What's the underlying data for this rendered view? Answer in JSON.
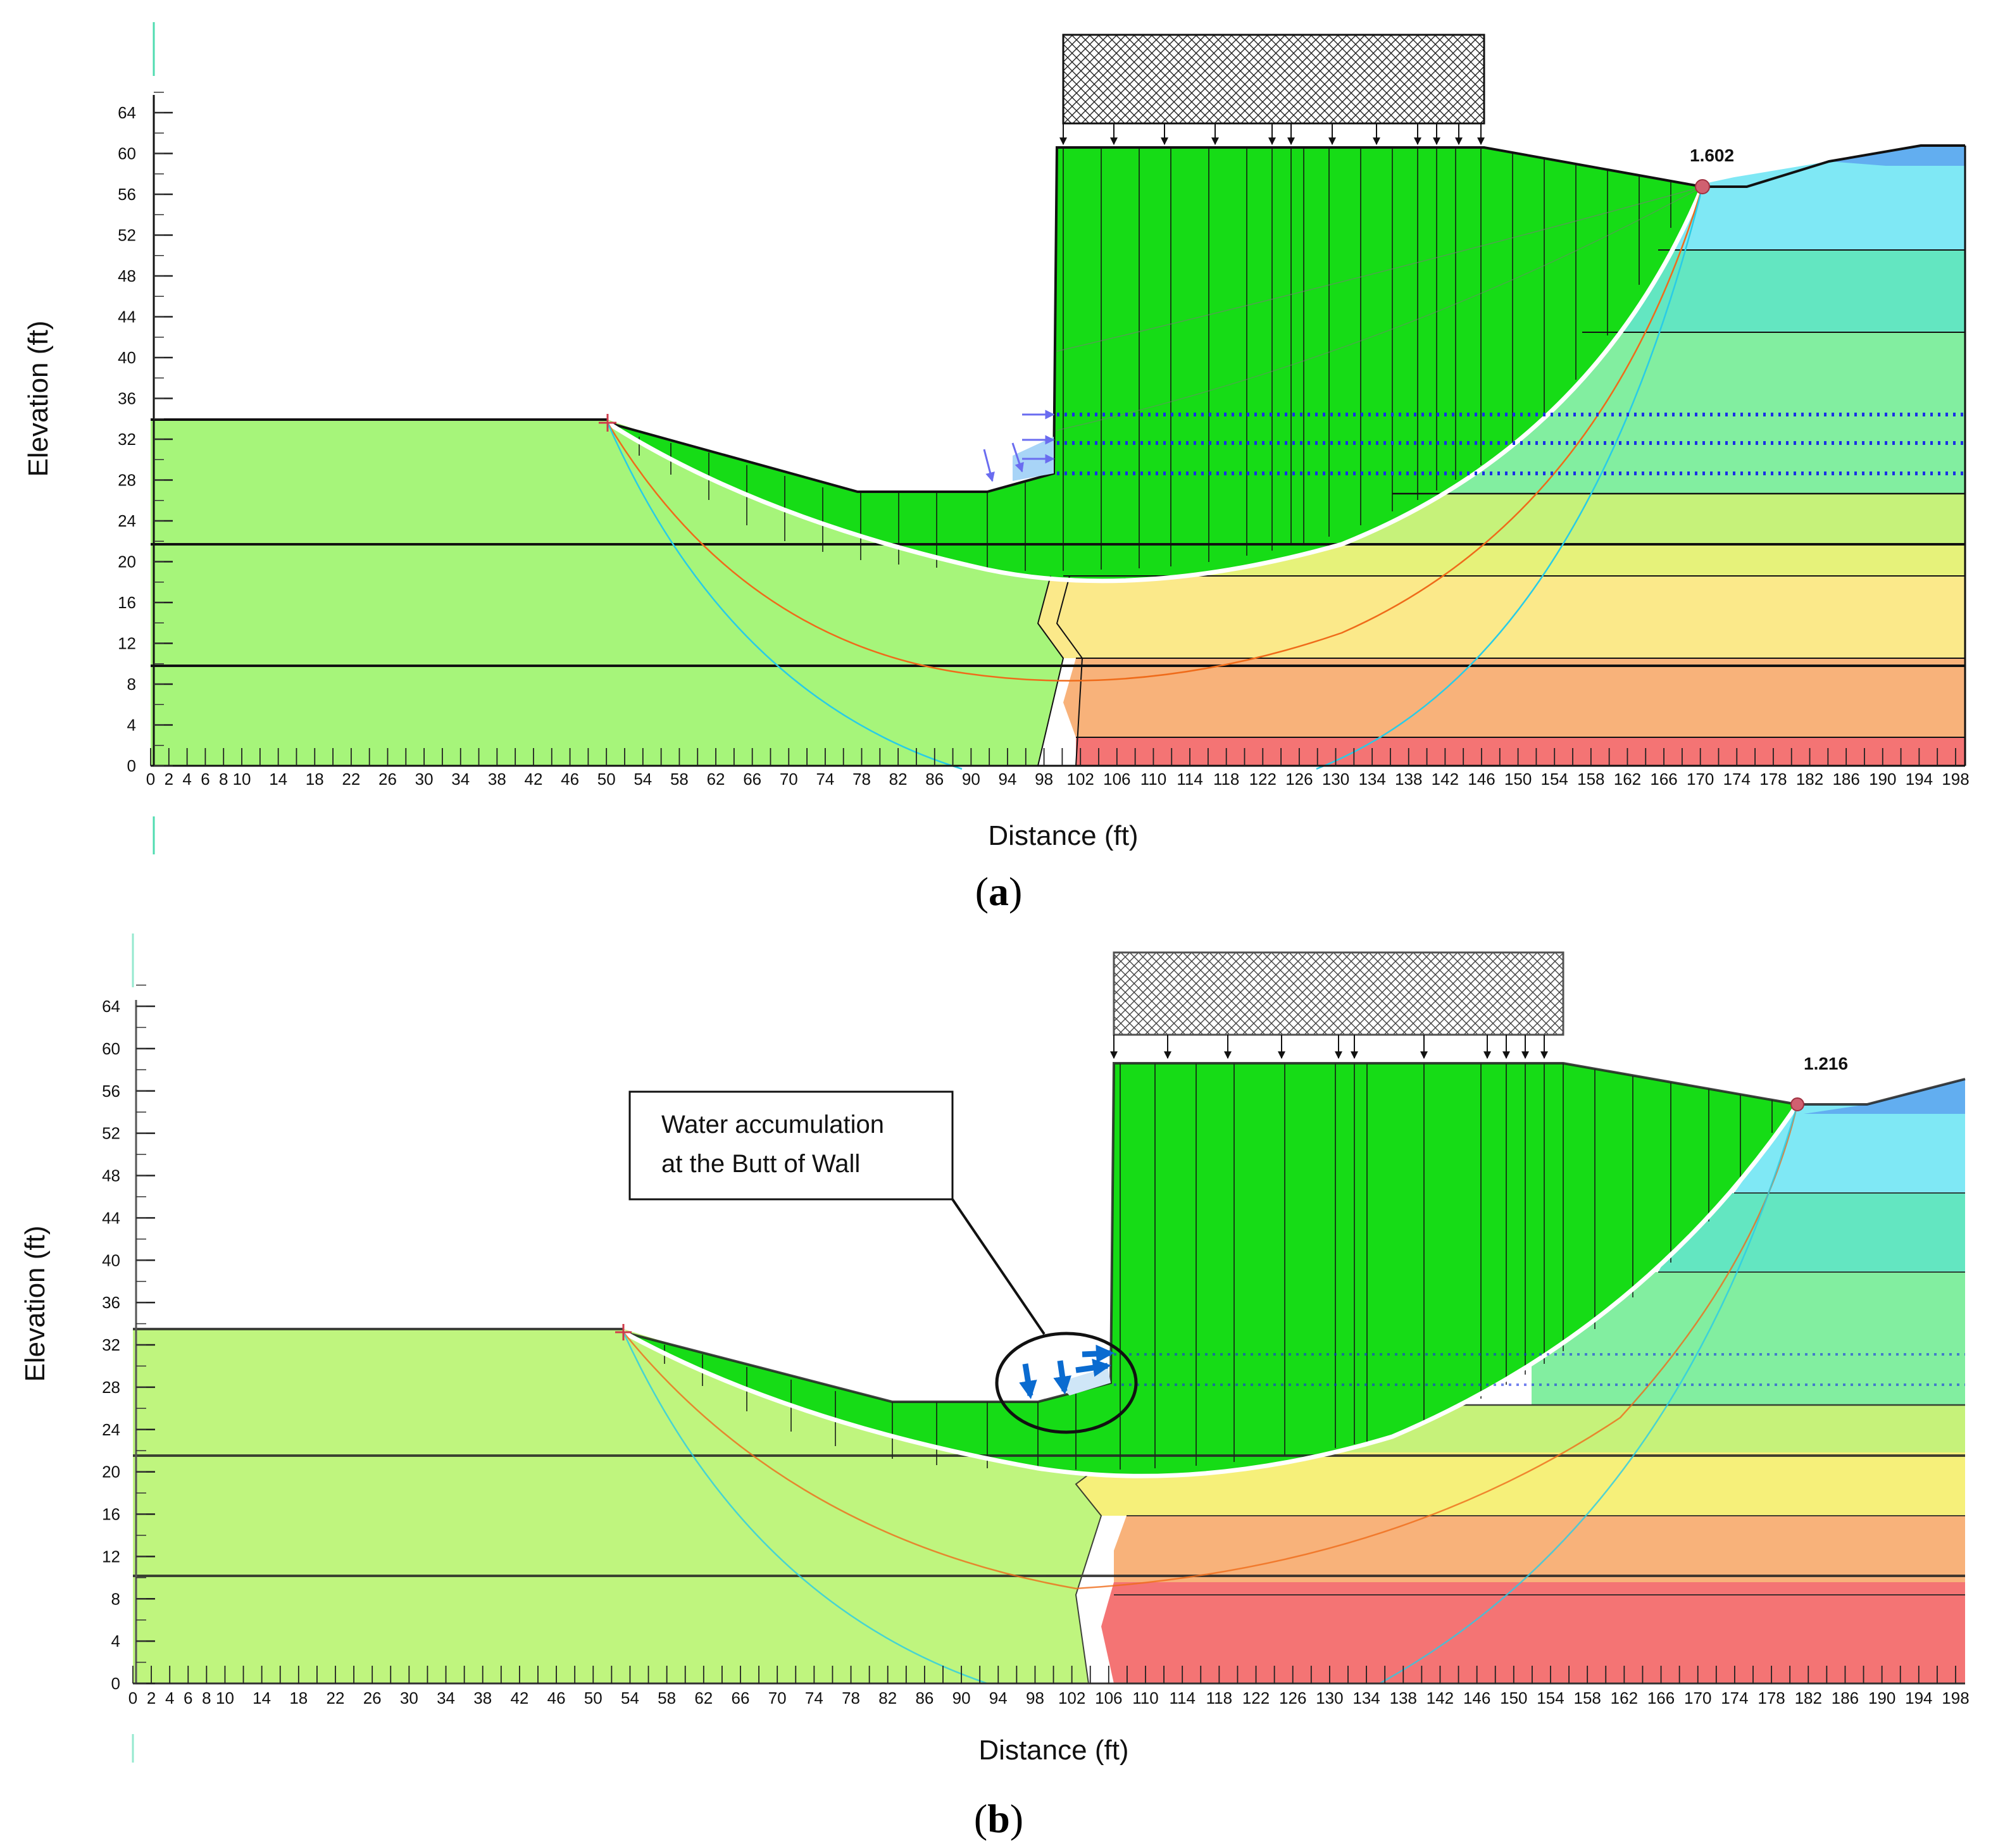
{
  "panels": [
    {
      "id": "a",
      "caption_letter": "a",
      "xlabel": "Distance (ft)",
      "ylabel": "Elevation (ft)",
      "factor_of_safety": "1.602",
      "x_ticks": [
        "0",
        "2",
        "4",
        "6",
        "8",
        "10",
        "14",
        "18",
        "22",
        "26",
        "30",
        "34",
        "38",
        "42",
        "46",
        "50",
        "54",
        "58",
        "62",
        "66",
        "70",
        "74",
        "78",
        "82",
        "86",
        "90",
        "94",
        "98",
        "102",
        "106",
        "110",
        "114",
        "118",
        "122",
        "126",
        "130",
        "134",
        "138",
        "142",
        "146",
        "150",
        "154",
        "158",
        "162",
        "166",
        "170",
        "174",
        "178",
        "182",
        "186",
        "190",
        "194",
        "198"
      ],
      "y_ticks": [
        "0",
        "4",
        "8",
        "12",
        "16",
        "20",
        "24",
        "28",
        "32",
        "36",
        "40",
        "44",
        "48",
        "52",
        "56",
        "60",
        "64"
      ]
    },
    {
      "id": "b",
      "caption_letter": "b",
      "xlabel": "Distance (ft)",
      "ylabel": "Elevation (ft)",
      "factor_of_safety": "1.216",
      "annotation": [
        "Water accumulation",
        "at the Butt of Wall"
      ],
      "x_ticks": [
        "0",
        "2",
        "4",
        "6",
        "8",
        "10",
        "14",
        "18",
        "22",
        "26",
        "30",
        "34",
        "38",
        "42",
        "46",
        "50",
        "54",
        "58",
        "62",
        "66",
        "70",
        "74",
        "78",
        "82",
        "86",
        "90",
        "94",
        "98",
        "102",
        "106",
        "110",
        "114",
        "118",
        "122",
        "126",
        "130",
        "134",
        "138",
        "142",
        "146",
        "150",
        "154",
        "158",
        "162",
        "166",
        "170",
        "174",
        "178",
        "182",
        "186",
        "190",
        "194",
        "198"
      ],
      "y_ticks": [
        "0",
        "4",
        "8",
        "12",
        "16",
        "20",
        "24",
        "28",
        "32",
        "36",
        "40",
        "44",
        "48",
        "52",
        "56",
        "60",
        "64"
      ]
    }
  ],
  "colors": {
    "slip_mass": "#16dc16",
    "left_soil": "#a6f57a",
    "left_soil_b": "#bff57e",
    "layer_green": "#c6f27a",
    "layer_yellow": "#f6f07a",
    "layer_light_yellow": "#fbe98a",
    "layer_orange": "#f8b27a",
    "layer_red": "#f47474",
    "layer_cyan": "#7fe8f5",
    "layer_teal": "#63e6c1",
    "layer_mint": "#82eea0",
    "layer_blue": "#62aef0",
    "slip_circle_white": "#ffffff",
    "trial_orange": "#ef6b1a",
    "trial_cyan": "#29cce6",
    "water_blue": "#1a2fe6",
    "arrow_blue": "#6a6cf0",
    "callout_arrow": "#0a6bd0"
  }
}
